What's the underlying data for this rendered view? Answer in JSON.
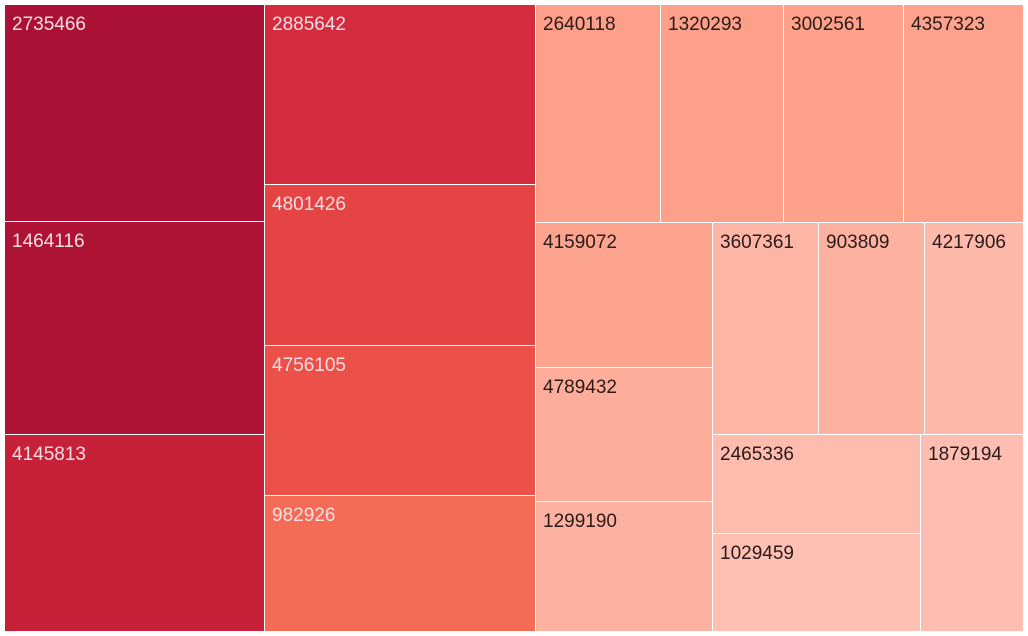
{
  "chart_data": {
    "type": "treemap",
    "title": "",
    "colors": {
      "text_light": "#f4dfe3",
      "text_dark": "#2b1a1a"
    },
    "items": [
      {
        "label": "2735466",
        "value": 2735466,
        "color": "#ab1135",
        "text": "light"
      },
      {
        "label": "1464116",
        "value": 1464116,
        "color": "#ae1336",
        "text": "light"
      },
      {
        "label": "4145813",
        "value": 4145813,
        "color": "#c72039",
        "text": "light"
      },
      {
        "label": "2885642",
        "value": 2885642,
        "color": "#d52b3e",
        "text": "light"
      },
      {
        "label": "4801426",
        "value": 4801426,
        "color": "#e54445",
        "text": "light"
      },
      {
        "label": "4756105",
        "value": 4756105,
        "color": "#ec5149",
        "text": "light"
      },
      {
        "label": "982926",
        "value": 982926,
        "color": "#f46c55",
        "text": "light"
      },
      {
        "label": "2640118",
        "value": 2640118,
        "color": "#fda08a",
        "text": "dark"
      },
      {
        "label": "1320293",
        "value": 1320293,
        "color": "#fda08a",
        "text": "dark"
      },
      {
        "label": "3002561",
        "value": 3002561,
        "color": "#fda18b",
        "text": "dark"
      },
      {
        "label": "4357323",
        "value": 4357323,
        "color": "#fda28c",
        "text": "dark"
      },
      {
        "label": "4159072",
        "value": 4159072,
        "color": "#fca48e",
        "text": "dark"
      },
      {
        "label": "4789432",
        "value": 4789432,
        "color": "#fdad9a",
        "text": "dark"
      },
      {
        "label": "1299190",
        "value": 1299190,
        "color": "#fdb2a1",
        "text": "dark"
      },
      {
        "label": "3607361",
        "value": 3607361,
        "color": "#fdb5a5",
        "text": "dark"
      },
      {
        "label": "903809",
        "value": 903809,
        "color": "#fdb2a1",
        "text": "dark"
      },
      {
        "label": "4217906",
        "value": 4217906,
        "color": "#fdbaab",
        "text": "dark"
      },
      {
        "label": "2465336",
        "value": 2465336,
        "color": "#fdbcae",
        "text": "dark"
      },
      {
        "label": "1029459",
        "value": 1029459,
        "color": "#fdc0b2",
        "text": "dark"
      },
      {
        "label": "1879194",
        "value": 1879194,
        "color": "#fdbeb1",
        "text": "dark"
      }
    ]
  }
}
